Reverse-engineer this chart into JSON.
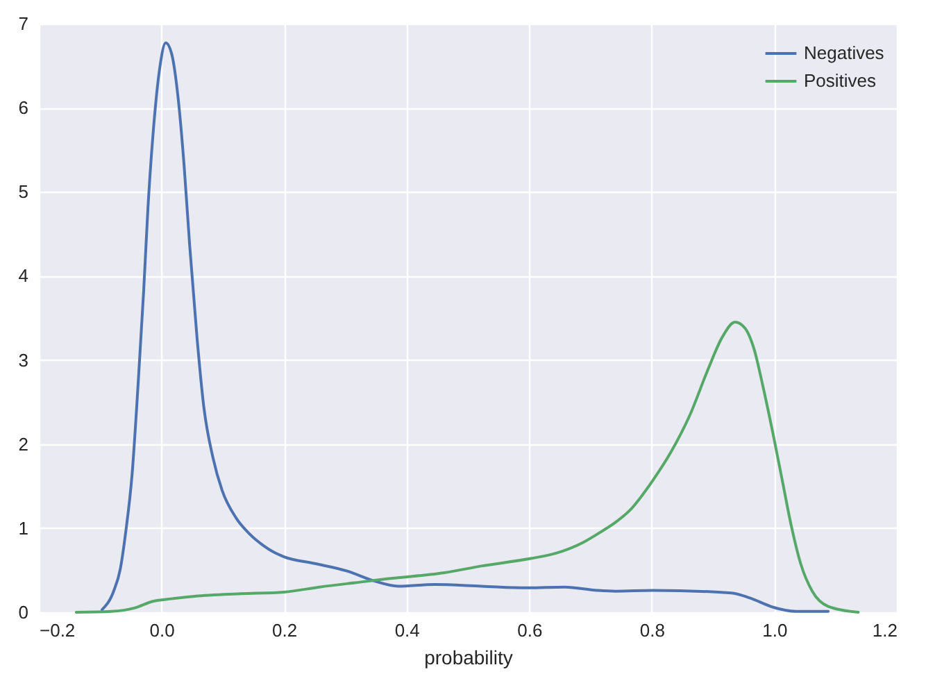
{
  "chart_data": {
    "type": "line",
    "xlabel": "probability",
    "xlim": [
      -0.2,
      1.2
    ],
    "xticks": [
      {
        "value": -0.2,
        "label": "−0.2"
      },
      {
        "value": 0,
        "label": "0.0"
      },
      0.2,
      0.4,
      0.6,
      0.8,
      {
        "value": 1,
        "label": "1.0"
      },
      1.2
    ],
    "ylim": [
      0,
      7
    ],
    "yticks": [
      0,
      1,
      2,
      3,
      4,
      5,
      6,
      7
    ],
    "grid": true,
    "legend": "top right",
    "series": [
      {
        "name": "Negatives",
        "color": "#4c72b0",
        "x": [
          -0.097,
          -0.078,
          -0.067,
          -0.058,
          -0.048,
          -0.038,
          -0.029,
          -0.022,
          -0.013,
          -0.003,
          0.007,
          0.017,
          0.027,
          0.037,
          0.046,
          0.058,
          0.069,
          0.084,
          0.099,
          0.122,
          0.144,
          0.167,
          0.182,
          0.2,
          0.25,
          0.303,
          0.348,
          0.386,
          0.446,
          0.522,
          0.597,
          0.658,
          0.711,
          0.741,
          0.802,
          0.93,
          0.96,
          0.998,
          1.035,
          1.088
        ],
        "values": [
          0.03,
          0.25,
          0.52,
          0.97,
          1.63,
          2.72,
          3.82,
          4.81,
          5.75,
          6.46,
          6.77,
          6.63,
          6.13,
          5.31,
          4.37,
          3.27,
          2.45,
          1.84,
          1.45,
          1.12,
          0.93,
          0.79,
          0.72,
          0.66,
          0.58,
          0.49,
          0.37,
          0.31,
          0.33,
          0.31,
          0.29,
          0.3,
          0.26,
          0.25,
          0.26,
          0.23,
          0.17,
          0.06,
          0.01,
          0.01
        ]
      },
      {
        "name": "Positives",
        "color": "#55a868",
        "x": [
          -0.139,
          -0.082,
          -0.044,
          -0.014,
          0.016,
          0.054,
          0.129,
          0.2,
          0.258,
          0.326,
          0.371,
          0.462,
          0.522,
          0.603,
          0.643,
          0.688,
          0.718,
          0.741,
          0.764,
          0.802,
          0.831,
          0.862,
          0.892,
          0.915,
          0.936,
          0.952,
          0.967,
          0.982,
          0.998,
          1.013,
          1.028,
          1.043,
          1.062,
          1.088,
          1.137
        ],
        "values": [
          0,
          0.01,
          0.05,
          0.13,
          0.16,
          0.19,
          0.22,
          0.24,
          0.3,
          0.36,
          0.4,
          0.47,
          0.55,
          0.64,
          0.7,
          0.83,
          0.96,
          1.07,
          1.21,
          1.57,
          1.9,
          2.34,
          2.89,
          3.27,
          3.45,
          3.38,
          3.13,
          2.67,
          2.12,
          1.57,
          1.02,
          0.58,
          0.25,
          0.07,
          0
        ]
      }
    ]
  }
}
